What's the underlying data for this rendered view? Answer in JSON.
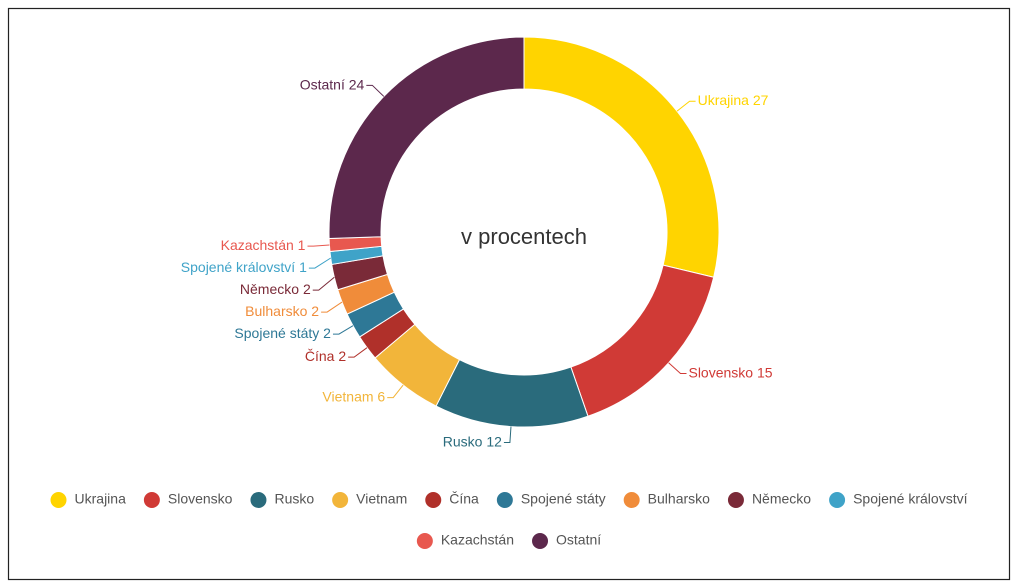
{
  "chart_data": {
    "type": "donut",
    "title": "v procentech",
    "categories": [
      "Ukrajina",
      "Slovensko",
      "Rusko",
      "Vietnam",
      "Čína",
      "Spojené státy",
      "Bulharsko",
      "Německo",
      "Spojené království",
      "Kazachstán",
      "Ostatní"
    ],
    "values": [
      27,
      15,
      12,
      6,
      2,
      2,
      2,
      2,
      1,
      1,
      24
    ],
    "colors": [
      "#ffd400",
      "#d03a36",
      "#2a6b7c",
      "#f2b53a",
      "#b0302a",
      "#2e7896",
      "#f08c3a",
      "#7a2a38",
      "#3fa3c8",
      "#e8584f",
      "#5c284c"
    ],
    "legend": "bottom"
  }
}
